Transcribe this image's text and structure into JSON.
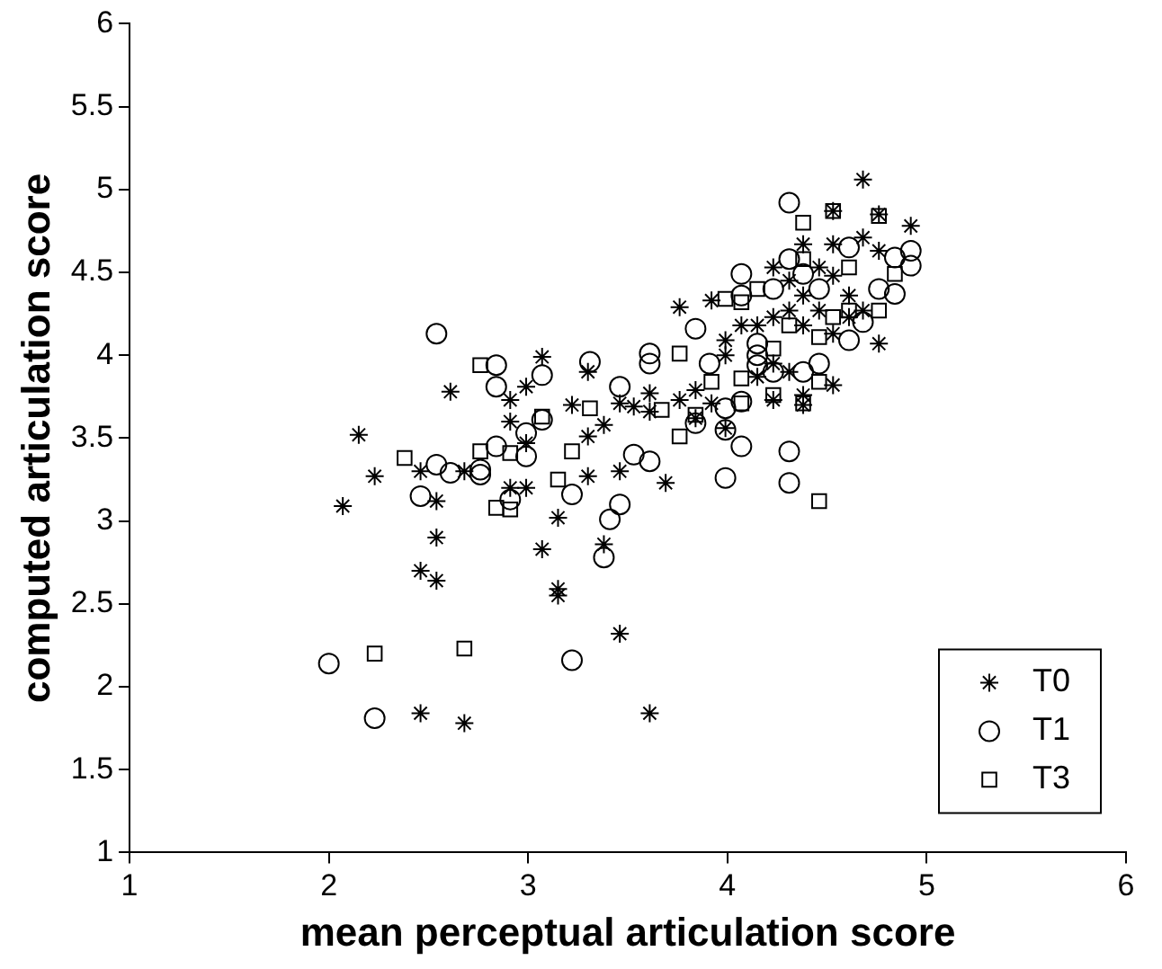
{
  "chart_data": {
    "type": "scatter",
    "xlabel": "mean perceptual articulation score",
    "ylabel": "computed articulation score",
    "xlim": [
      1,
      6
    ],
    "ylim": [
      1,
      6
    ],
    "xticks": [
      1,
      2,
      3,
      4,
      5,
      6
    ],
    "yticks": [
      1,
      1.5,
      2,
      2.5,
      3,
      3.5,
      4,
      4.5,
      5,
      5.5,
      6
    ],
    "grid": false,
    "legend": "bottom right",
    "series": [
      {
        "name": "T0",
        "color": "#000000",
        "marker": "cross",
        "x": [
          2.07,
          2.15,
          2.23,
          2.46,
          2.54,
          2.54,
          2.46,
          2.54,
          2.46,
          2.68,
          2.61,
          2.68,
          2.91,
          2.91,
          2.91,
          2.99,
          2.99,
          2.99,
          3.07,
          3.07,
          3.15,
          3.15,
          3.15,
          3.22,
          3.3,
          3.3,
          3.3,
          3.38,
          3.38,
          3.46,
          3.46,
          3.46,
          3.53,
          3.61,
          3.61,
          3.61,
          3.69,
          3.76,
          3.76,
          3.84,
          3.84,
          3.92,
          3.92,
          3.99,
          3.99,
          3.99,
          4.07,
          4.15,
          4.15,
          4.23,
          4.23,
          4.23,
          4.31,
          4.31,
          4.31,
          4.38,
          4.38,
          4.38,
          4.38,
          4.38,
          4.46,
          4.53,
          4.53,
          4.53,
          4.53,
          4.61,
          4.61,
          4.68,
          4.68,
          4.68,
          4.76,
          4.76,
          4.76,
          4.92,
          4.53,
          4.46,
          4.23
        ],
        "values": [
          3.09,
          3.52,
          3.27,
          3.3,
          3.12,
          2.9,
          2.7,
          2.64,
          1.84,
          1.78,
          3.78,
          3.3,
          3.73,
          3.6,
          3.2,
          3.2,
          3.47,
          3.81,
          3.99,
          2.83,
          3.02,
          2.59,
          2.55,
          3.7,
          3.51,
          3.9,
          3.27,
          3.58,
          2.86,
          3.71,
          3.3,
          2.32,
          3.69,
          3.77,
          3.66,
          1.84,
          3.23,
          4.29,
          3.73,
          3.79,
          3.62,
          3.71,
          4.33,
          3.56,
          4.0,
          4.09,
          4.18,
          3.87,
          4.18,
          4.53,
          3.95,
          3.73,
          4.45,
          4.27,
          3.9,
          4.67,
          4.36,
          4.18,
          3.76,
          3.7,
          4.53,
          4.67,
          4.48,
          4.13,
          3.82,
          4.36,
          4.23,
          5.06,
          4.71,
          4.27,
          4.85,
          4.63,
          4.07,
          4.78,
          4.87,
          4.27,
          4.23
        ]
      },
      {
        "name": "T1",
        "color": "#000000",
        "marker": "circle",
        "x": [
          2.0,
          2.23,
          2.54,
          2.46,
          2.54,
          2.61,
          2.76,
          2.76,
          2.84,
          2.84,
          2.84,
          2.91,
          2.99,
          2.99,
          3.07,
          3.07,
          3.22,
          3.22,
          3.31,
          3.46,
          3.46,
          3.41,
          3.38,
          3.53,
          3.61,
          3.61,
          3.61,
          3.84,
          3.84,
          3.99,
          3.99,
          3.99,
          4.07,
          4.07,
          4.07,
          4.07,
          4.15,
          4.15,
          4.23,
          4.23,
          4.31,
          4.31,
          4.31,
          4.31,
          4.38,
          4.38,
          4.46,
          4.46,
          4.61,
          4.61,
          4.68,
          4.76,
          4.84,
          4.84,
          4.92,
          4.92,
          3.91,
          4.15
        ],
        "values": [
          2.14,
          1.81,
          4.13,
          3.15,
          3.34,
          3.29,
          3.31,
          3.28,
          3.94,
          3.81,
          3.45,
          3.13,
          3.53,
          3.39,
          3.88,
          3.61,
          3.16,
          2.16,
          3.96,
          3.81,
          3.1,
          3.01,
          2.78,
          3.4,
          3.36,
          4.01,
          3.95,
          4.16,
          3.59,
          3.68,
          3.55,
          3.26,
          3.45,
          3.72,
          4.49,
          4.36,
          4.0,
          3.94,
          3.9,
          4.4,
          4.92,
          4.58,
          3.42,
          3.23,
          3.9,
          4.49,
          3.95,
          4.4,
          4.09,
          4.65,
          4.2,
          4.4,
          4.37,
          4.59,
          4.63,
          4.54,
          3.95,
          4.07
        ]
      },
      {
        "name": "T3",
        "color": "#000000",
        "marker": "square",
        "x": [
          2.23,
          2.68,
          2.38,
          2.76,
          2.76,
          2.84,
          2.91,
          2.91,
          3.07,
          3.15,
          3.22,
          3.31,
          3.67,
          3.76,
          3.76,
          3.84,
          3.92,
          4.07,
          4.07,
          4.07,
          4.23,
          4.23,
          4.31,
          4.38,
          4.38,
          4.46,
          4.46,
          4.46,
          4.53,
          4.53,
          4.61,
          4.76,
          4.76,
          4.84,
          4.15,
          3.99,
          4.38,
          4.61
        ],
        "values": [
          2.2,
          2.23,
          3.38,
          3.94,
          3.42,
          3.08,
          3.07,
          3.41,
          3.63,
          3.25,
          3.42,
          3.68,
          3.67,
          3.51,
          4.01,
          3.64,
          3.84,
          3.86,
          3.71,
          4.32,
          3.76,
          4.04,
          4.18,
          4.8,
          3.71,
          3.12,
          3.84,
          4.11,
          4.87,
          4.23,
          4.27,
          4.84,
          4.27,
          4.49,
          4.4,
          4.34,
          4.58,
          4.53
        ]
      }
    ]
  }
}
